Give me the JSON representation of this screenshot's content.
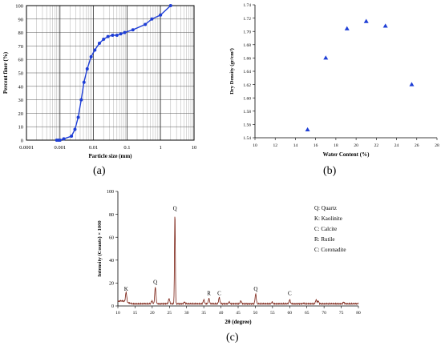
{
  "panels": [
    {
      "label": "(a)"
    },
    {
      "label": "(b)"
    },
    {
      "label": "(c)"
    }
  ],
  "chart_data": [
    {
      "id": "a",
      "type": "line",
      "xlabel": "Particle size (mm)",
      "ylabel": "Percent finer (%)",
      "xscale": "log",
      "xlim": [
        0.0001,
        10
      ],
      "ylim": [
        0,
        100
      ],
      "xticks": [
        0.0001,
        0.001,
        0.01,
        0.1,
        1,
        10
      ],
      "xtick_labels": [
        "0.0001",
        "0.001",
        "0.01",
        "0.1",
        "1",
        "10"
      ],
      "yticks": [
        0,
        10,
        20,
        30,
        40,
        50,
        60,
        70,
        80,
        90,
        100
      ],
      "ytick_labels": [
        "0",
        "10",
        "20",
        "30",
        "40",
        "50",
        "60",
        "70",
        "80",
        "90",
        "100"
      ],
      "grid": true,
      "color": "#1f3fd6",
      "series": [
        {
          "x": [
            0.0008,
            0.0009,
            0.001,
            0.0013,
            0.0022,
            0.0028,
            0.0035,
            0.0043,
            0.0052,
            0.0065,
            0.0085,
            0.011,
            0.015,
            0.02,
            0.027,
            0.037,
            0.05,
            0.065,
            0.085,
            0.15,
            0.35,
            0.55,
            1.0,
            2.0
          ],
          "y": [
            0,
            0,
            0,
            1,
            3,
            8,
            17,
            30,
            43,
            53,
            62,
            67,
            72,
            75,
            77,
            78,
            78,
            79,
            80,
            82,
            86,
            90,
            93,
            100
          ]
        }
      ]
    },
    {
      "id": "b",
      "type": "scatter",
      "xlabel": "Water Content (%)",
      "ylabel": "Dry Density (gr/cm³)",
      "xlim": [
        10,
        28
      ],
      "ylim": [
        1.54,
        1.74
      ],
      "xticks": [
        10,
        12,
        14,
        16,
        18,
        20,
        22,
        24,
        26,
        28
      ],
      "xtick_labels": [
        "10",
        "12",
        "14",
        "16",
        "18",
        "20",
        "22",
        "24",
        "26",
        "28"
      ],
      "yticks": [
        1.54,
        1.56,
        1.58,
        1.6,
        1.62,
        1.64,
        1.66,
        1.68,
        1.7,
        1.72,
        1.74
      ],
      "ytick_labels": [
        "1.54",
        "1.56",
        "1.58",
        "1.60",
        "1.62",
        "1.64",
        "1.66",
        "1.68",
        "1.70",
        "1.72",
        "1.74"
      ],
      "grid": false,
      "marker": "triangle",
      "color": "#1f3fd6",
      "series": [
        {
          "x": [
            15.2,
            17.0,
            19.1,
            21.0,
            22.9,
            25.5
          ],
          "y": [
            1.552,
            1.66,
            1.704,
            1.715,
            1.708,
            1.62
          ]
        }
      ]
    },
    {
      "id": "c",
      "type": "line",
      "xlabel": "2θ (degree)",
      "ylabel": "Intensity (Counts) × 1000",
      "xlim": [
        10,
        80
      ],
      "ylim": [
        0,
        100
      ],
      "xticks": [
        10,
        15,
        20,
        25,
        30,
        35,
        40,
        45,
        50,
        55,
        60,
        65,
        70,
        75,
        80
      ],
      "xtick_labels": [
        "10",
        "15",
        "20",
        "25",
        "30",
        "35",
        "40",
        "45",
        "50",
        "55",
        "60",
        "65",
        "70",
        "75",
        "80"
      ],
      "yticks": [
        0,
        20,
        40,
        60,
        80,
        100
      ],
      "ytick_labels": [
        "0",
        "20",
        "40",
        "60",
        "80",
        "100"
      ],
      "grid": false,
      "color": "#7a1f12",
      "baseline": 1.5,
      "peaks": [
        {
          "x": 12.4,
          "y": 10
        },
        {
          "x": 19.9,
          "y": 4
        },
        {
          "x": 20.9,
          "y": 16
        },
        {
          "x": 24.9,
          "y": 6
        },
        {
          "x": 26.6,
          "y": 80
        },
        {
          "x": 29.4,
          "y": 3
        },
        {
          "x": 35.0,
          "y": 5
        },
        {
          "x": 36.5,
          "y": 6
        },
        {
          "x": 39.5,
          "y": 7
        },
        {
          "x": 42.4,
          "y": 3
        },
        {
          "x": 45.8,
          "y": 4
        },
        {
          "x": 50.1,
          "y": 10
        },
        {
          "x": 54.9,
          "y": 3
        },
        {
          "x": 60.0,
          "y": 5
        },
        {
          "x": 64.0,
          "y": 2
        },
        {
          "x": 67.7,
          "y": 5
        },
        {
          "x": 68.3,
          "y": 4
        },
        {
          "x": 75.7,
          "y": 3
        }
      ],
      "peak_labels": [
        {
          "text": "K",
          "x": 12.4,
          "y": 12
        },
        {
          "text": "Q",
          "x": 20.9,
          "y": 18
        },
        {
          "text": "Q",
          "x": 26.6,
          "y": 82
        },
        {
          "text": "R",
          "x": 36.5,
          "y": 8
        },
        {
          "text": "C",
          "x": 39.5,
          "y": 8
        },
        {
          "text": "Q",
          "x": 50.1,
          "y": 12
        },
        {
          "text": "C",
          "x": 60.0,
          "y": 8
        }
      ],
      "legend": [
        "Q: Quartz",
        "K: Kaolinite",
        "C: Calcite",
        "R: Rutile",
        "C: Coronadite"
      ]
    }
  ]
}
